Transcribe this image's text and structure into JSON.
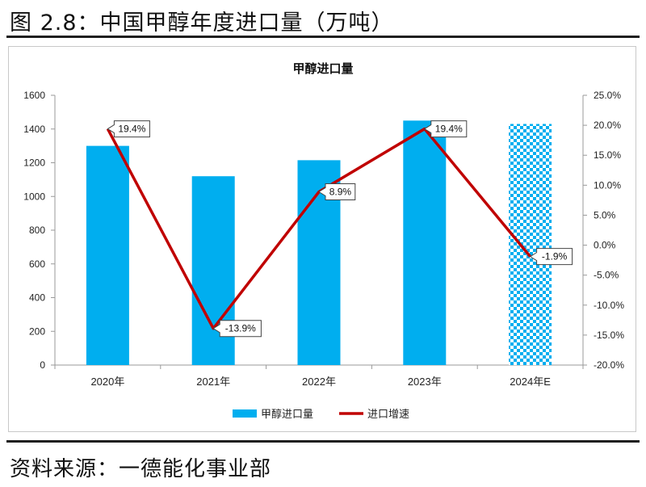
{
  "figure": {
    "title": "图 2.8：中国甲醇年度进口量（万吨）",
    "source": "资料来源：一德能化事业部"
  },
  "colors": {
    "bar": "#00AEEF",
    "line": "#C00000",
    "axis": "#999999"
  },
  "chart_data": {
    "type": "bar",
    "title": "甲醇进口量",
    "categories": [
      "2020年",
      "2021年",
      "2022年",
      "2023年",
      "2024年E"
    ],
    "series": [
      {
        "name": "甲醇进口量",
        "type": "bar",
        "axis": "left",
        "values": [
          1300,
          1120,
          1215,
          1450,
          1430
        ],
        "patterned": [
          false,
          false,
          false,
          false,
          true
        ]
      },
      {
        "name": "进口增速",
        "type": "line",
        "axis": "right",
        "values": [
          19.4,
          -13.9,
          8.9,
          19.4,
          -1.9
        ],
        "labels": [
          "19.4%",
          "-13.9%",
          "8.9%",
          "19.4%",
          "-1.9%"
        ]
      }
    ],
    "y_left": {
      "min": 0,
      "max": 1600,
      "step": 200,
      "ticks": [
        "0",
        "200",
        "400",
        "600",
        "800",
        "1000",
        "1200",
        "1400",
        "1600"
      ]
    },
    "y_right": {
      "min": -20,
      "max": 25,
      "step": 5,
      "ticks": [
        "-20.0%",
        "-15.0%",
        "-10.0%",
        "-5.0%",
        "0.0%",
        "5.0%",
        "10.0%",
        "15.0%",
        "20.0%",
        "25.0%"
      ]
    },
    "legend": [
      "甲醇进口量",
      "进口增速"
    ],
    "legend_position": "bottom",
    "grid": false
  }
}
